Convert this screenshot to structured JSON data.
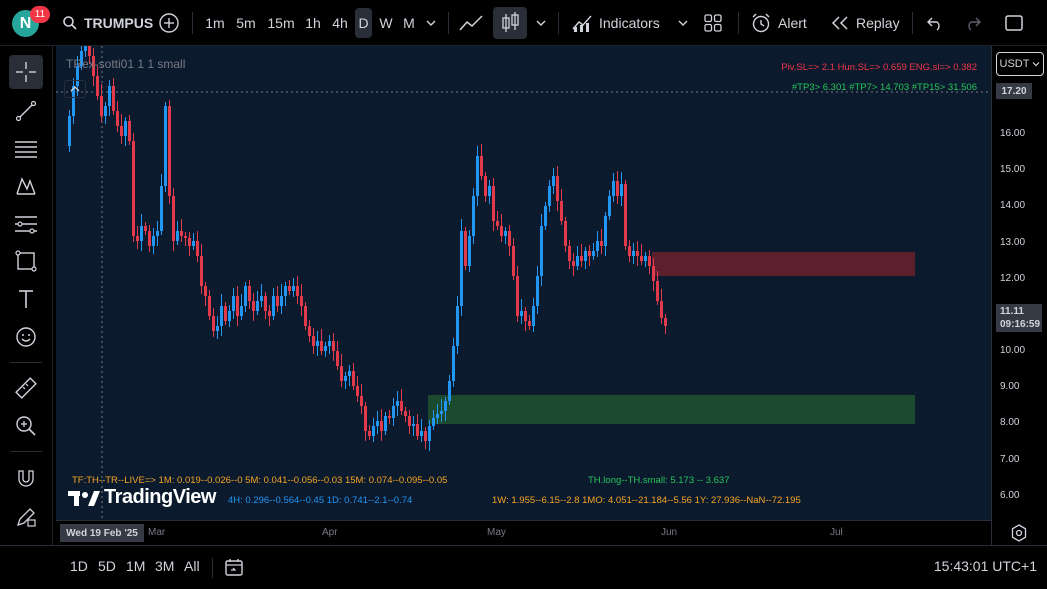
{
  "topbar": {
    "avatar_letter": "N",
    "notifications": "11",
    "symbol": "TRUMPUS",
    "timeframes": [
      "1m",
      "5m",
      "15m",
      "1h",
      "4h",
      "D",
      "W",
      "M"
    ],
    "active_timeframe": "D",
    "indicators_label": "Indicators",
    "alert_label": "Alert",
    "replay_label": "Replay"
  },
  "chart": {
    "indicator_title": "TRex-sotti01 1 1 small",
    "sl_line": "Piv.SL=> 2.1  Hun.SL=> 0.659  ENG.sl=> 0.382",
    "tp_line": "#TP3> 6.301  #TP7> 14.703  #TP15> 31.506",
    "tf_row1": "TF:TH--TR--LIVE=>   1M: 0.019--0.026--0   5M: 0.041--0.056--0.03   15M: 0.074--0.095--0.05",
    "tf_row2": "4H: 0.296--0.564--0.45   1D: 0.741--2.1--0.74",
    "th_text": "TH.long--TH.small: 5.173 -- 3.637",
    "tf_row3": "1W: 1.955--6.15--2.8   1MO: 4.051--21.184--5.56   1Y: 27.936--NaN--72.195",
    "watermark": "TradingView",
    "colors": {
      "bg": "#0c1a2e",
      "up": "#2196f3",
      "down": "#e23a4a",
      "supply": "#5c1f2b",
      "demand": "#1b4a2e"
    }
  },
  "price_axis": {
    "currency": "USDT",
    "ticks": [
      "17.20",
      "16.00",
      "15.00",
      "14.00",
      "13.00",
      "12.00",
      "11.11",
      "10.00",
      "9.00",
      "8.00",
      "7.00",
      "6.00"
    ],
    "current_price": "11.11",
    "countdown": "09:16:59",
    "crosshair_price": "17.20"
  },
  "time_axis": {
    "crosshair_date": "Wed 19 Feb '25",
    "labels": [
      "Mar",
      "Apr",
      "May",
      "Jun",
      "Jul"
    ]
  },
  "bottom": {
    "ranges": [
      "1D",
      "5D",
      "1M",
      "3M",
      "All"
    ],
    "clock": "15:43:01 UTC+1"
  }
}
